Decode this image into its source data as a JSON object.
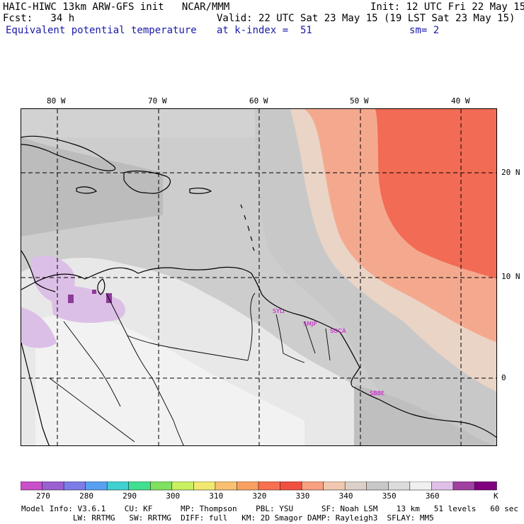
{
  "header": {
    "line1_left": "HAIC-HIWC 13km ARW-GFS init   NCAR/MMM",
    "line1_right": "Init: 12 UTC Fri 22 May 15",
    "line2_left": "Fcst:   34 h",
    "line2_right": "Valid: 22 UTC Sat 23 May 15 (19 LST Sat 23 May 15)",
    "line3_left": "Equivalent potential temperature",
    "line3_mid": "at k-index =  51",
    "line3_right": "sm= 2"
  },
  "longitudes": [
    "80 W",
    "70 W",
    "60 W",
    "50 W",
    "40 W"
  ],
  "latitudes": [
    "20 N",
    "10 N",
    "0"
  ],
  "cities": [
    "SMJP",
    "SOCA",
    "SYLI",
    "SBBE"
  ],
  "colorbar": {
    "labels": [
      "270",
      "280",
      "290",
      "300",
      "310",
      "320",
      "330",
      "340",
      "350",
      "360"
    ],
    "unit": "K",
    "colors": [
      "#c850c8",
      "#9a60d0",
      "#7c7ce8",
      "#5aa0f0",
      "#40d0d0",
      "#40e090",
      "#80e060",
      "#c8f060",
      "#f0e870",
      "#f8c070",
      "#f8a060",
      "#f87050",
      "#f05040",
      "#f8a080",
      "#f0c8b0",
      "#dcd0c8",
      "#c8c8c8",
      "#dcdcdc",
      "#f0f0f0",
      "#e0c0e8",
      "#a040a0",
      "#800080"
    ]
  },
  "footer": {
    "line1": "Model Info: V3.6.1    CU: KF      MP: Thompson    PBL: YSU      SF: Noah LSM    13 km   51 levels   60 sec",
    "line2": "           LW: RRTMG   SW: RRTMG  DIFF: full   KM: 2D Smagor DAMP: Rayleigh3  SFLAY: MM5"
  }
}
